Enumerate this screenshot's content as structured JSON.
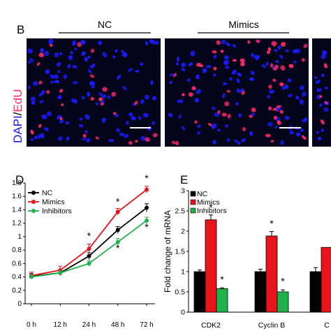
{
  "panel_b": {
    "letter": "B",
    "group_left": "NC",
    "group_right": "Mimics",
    "ylabel_part1": "DAPI",
    "ylabel_sep": "/",
    "ylabel_part2": "EdU"
  },
  "colors": {
    "nc": "#000000",
    "mimics": "#e8141c",
    "inhibitors": "#1fb24a",
    "dapi": "#1a1aff",
    "edu": "#ff2a6a",
    "micro_bg": "#04041a"
  },
  "chart_data": [
    {
      "panel": "D",
      "type": "line",
      "x": [
        "0 h",
        "12 h",
        "24 h",
        "48 h",
        "72 h"
      ],
      "ylim": [
        0.0,
        1.8
      ],
      "yticks": [
        "0",
        "0.2",
        "0.4",
        "0.6",
        "0.8",
        "1",
        "1.2",
        "1.4",
        "1.6",
        "1.8"
      ],
      "series": [
        {
          "name": "NC",
          "values": [
            0.41,
            0.46,
            0.71,
            1.1,
            1.43
          ],
          "errors": [
            0.04,
            0.04,
            0.05,
            0.05,
            0.06
          ]
        },
        {
          "name": "Mimics",
          "values": [
            0.42,
            0.5,
            0.82,
            1.37,
            1.7
          ],
          "errors": [
            0.05,
            0.06,
            0.07,
            0.05,
            0.05
          ]
        },
        {
          "name": "Inhibitors",
          "values": [
            0.4,
            0.46,
            0.6,
            0.92,
            1.24
          ],
          "errors": [
            0.03,
            0.03,
            0.04,
            0.05,
            0.05
          ]
        }
      ],
      "annotations": [
        "*",
        "*",
        "*",
        "*",
        "*",
        "*"
      ]
    },
    {
      "panel": "E",
      "type": "bar",
      "categories": [
        "CDK2",
        "Cyclin B",
        "C"
      ],
      "ylabel": "Fold change of mRNA",
      "ylim": [
        0,
        3
      ],
      "yticks": [
        "0",
        "0.5",
        "1",
        "1.5",
        "2",
        "2.5",
        "3"
      ],
      "series": [
        {
          "name": "NC",
          "values": [
            1.0,
            1.0,
            1.0
          ],
          "errors": [
            0.04,
            0.06,
            0.1
          ]
        },
        {
          "name": "Mimics",
          "values": [
            2.28,
            1.88,
            1.6
          ],
          "errors": [
            0.12,
            0.11,
            0
          ]
        },
        {
          "name": "Inhibitors",
          "values": [
            0.58,
            0.5,
            null
          ],
          "errors": [
            0.02,
            0.05,
            0
          ]
        }
      ],
      "annotations": [
        "*",
        "*",
        "*",
        "*"
      ]
    }
  ]
}
